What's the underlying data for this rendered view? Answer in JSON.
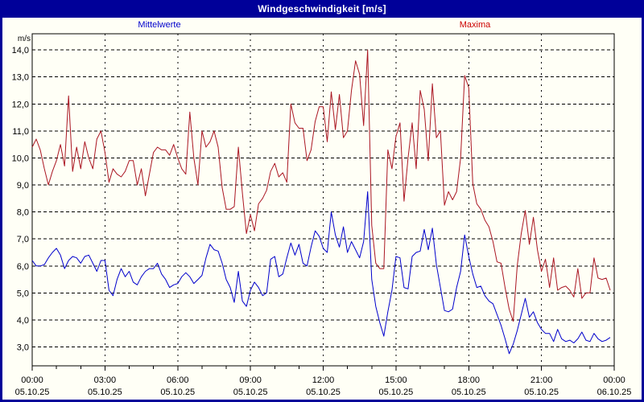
{
  "header": {
    "title": "Windgeschwindigkeit [m/s]"
  },
  "legend": {
    "mean_label": "Mittelwerte",
    "max_label": "Maxima",
    "mean_color": "#0000CC",
    "max_color": "#CC0000"
  },
  "colors": {
    "frame_navy": "#000099",
    "background": "#fffff6",
    "grid": "#000000",
    "mean_line": "#0000CC",
    "max_line": "#AA1622"
  },
  "chart_data": {
    "type": "line",
    "title": "Windgeschwindigkeit [m/s]",
    "ylabel": "m/s",
    "xlabel": "",
    "ylim": [
      2.3,
      14.6
    ],
    "xlim_hours": [
      0,
      24
    ],
    "grid": "dashed",
    "sample_interval_minutes": 10,
    "yticks": [
      {
        "value": 14,
        "label": "14,0"
      },
      {
        "value": 13,
        "label": "13,0"
      },
      {
        "value": 12,
        "label": "12,0"
      },
      {
        "value": 11,
        "label": "11,0"
      },
      {
        "value": 10,
        "label": "10,0"
      },
      {
        "value": 9,
        "label": "9,0"
      },
      {
        "value": 8,
        "label": "8,0"
      },
      {
        "value": 7,
        "label": "7,0"
      },
      {
        "value": 6,
        "label": "6,0"
      },
      {
        "value": 5,
        "label": "5,0"
      },
      {
        "value": 4,
        "label": "4,0"
      },
      {
        "value": 3,
        "label": "3,0"
      }
    ],
    "xticks": [
      {
        "hour": 0,
        "time": "00:00",
        "date": "05.10.25"
      },
      {
        "hour": 3,
        "time": "03:00",
        "date": "05.10.25"
      },
      {
        "hour": 6,
        "time": "06:00",
        "date": "05.10.25"
      },
      {
        "hour": 9,
        "time": "09:00",
        "date": "05.10.25"
      },
      {
        "hour": 12,
        "time": "12:00",
        "date": "05.10.25"
      },
      {
        "hour": 15,
        "time": "15:00",
        "date": "05.10.25"
      },
      {
        "hour": 18,
        "time": "18:00",
        "date": "05.10.25"
      },
      {
        "hour": 21,
        "time": "21:00",
        "date": "05.10.25"
      },
      {
        "hour": 24,
        "time": "00:00",
        "date": "06.10.25"
      }
    ],
    "minor_xtick_every_hours": 1,
    "series": [
      {
        "name": "Mittelwerte",
        "color": "#0000CC",
        "values": [
          6.2,
          6.0,
          6.0,
          6.05,
          6.3,
          6.5,
          6.65,
          6.4,
          5.9,
          6.2,
          6.35,
          6.3,
          6.1,
          6.35,
          6.4,
          6.1,
          5.8,
          6.2,
          6.2,
          5.1,
          4.9,
          5.5,
          5.9,
          5.6,
          5.8,
          5.4,
          5.3,
          5.6,
          5.8,
          5.9,
          5.9,
          6.1,
          5.7,
          5.5,
          5.2,
          5.3,
          5.35,
          5.6,
          5.75,
          5.6,
          5.35,
          5.5,
          5.65,
          6.3,
          6.8,
          6.6,
          6.55,
          6.1,
          5.5,
          5.2,
          4.65,
          5.8,
          4.7,
          4.5,
          5.1,
          5.4,
          5.2,
          4.9,
          5.0,
          6.25,
          6.35,
          5.6,
          5.7,
          6.3,
          6.85,
          6.4,
          6.8,
          6.1,
          6.0,
          6.7,
          7.3,
          7.1,
          6.65,
          6.5,
          8.0,
          7.15,
          6.7,
          7.45,
          6.5,
          6.9,
          6.6,
          6.3,
          6.9,
          8.75,
          5.5,
          4.5,
          3.9,
          3.4,
          4.3,
          5.1,
          6.35,
          6.3,
          5.2,
          5.15,
          6.35,
          6.5,
          6.55,
          7.35,
          6.6,
          7.4,
          6.05,
          5.2,
          4.35,
          4.3,
          4.4,
          5.2,
          5.8,
          7.15,
          6.35,
          5.7,
          5.2,
          5.25,
          4.9,
          4.7,
          4.6,
          4.2,
          3.8,
          3.3,
          2.75,
          3.1,
          3.6,
          4.2,
          4.8,
          4.1,
          4.3,
          3.9,
          3.65,
          3.5,
          3.5,
          3.2,
          3.65,
          3.3,
          3.2,
          3.25,
          3.15,
          3.3,
          3.55,
          3.25,
          3.2,
          3.5,
          3.3,
          3.2,
          3.25,
          3.35
        ]
      },
      {
        "name": "Maxima",
        "color": "#AA1622",
        "values": [
          10.4,
          10.7,
          10.3,
          9.6,
          9.0,
          9.5,
          9.9,
          10.5,
          9.7,
          12.3,
          9.5,
          10.4,
          9.6,
          10.6,
          10.0,
          9.6,
          10.7,
          11.0,
          10.2,
          9.1,
          9.6,
          9.4,
          9.3,
          9.5,
          9.9,
          9.9,
          9.0,
          9.6,
          8.6,
          9.4,
          10.2,
          10.4,
          10.3,
          10.3,
          10.1,
          10.5,
          10.0,
          9.6,
          9.4,
          11.7,
          10.0,
          9.0,
          11.0,
          10.4,
          10.6,
          11.0,
          10.4,
          8.9,
          8.1,
          8.1,
          8.2,
          10.4,
          8.7,
          7.2,
          7.9,
          7.3,
          8.3,
          8.5,
          8.8,
          9.5,
          9.8,
          9.3,
          9.45,
          9.1,
          12.0,
          11.3,
          11.1,
          11.1,
          9.9,
          10.3,
          11.35,
          11.9,
          11.9,
          10.6,
          12.45,
          11.05,
          12.35,
          10.75,
          11.0,
          12.5,
          13.6,
          13.1,
          11.2,
          14.0,
          7.5,
          6.1,
          5.9,
          5.9,
          10.3,
          9.6,
          10.8,
          11.3,
          8.4,
          10.0,
          11.3,
          9.6,
          12.5,
          11.8,
          9.9,
          12.75,
          10.75,
          11.0,
          8.25,
          8.75,
          8.45,
          8.75,
          10.0,
          13.05,
          12.6,
          9.05,
          8.3,
          8.1,
          7.7,
          7.45,
          6.9,
          6.15,
          6.1,
          5.2,
          4.4,
          3.95,
          6.0,
          7.2,
          8.05,
          6.8,
          7.8,
          6.6,
          5.8,
          6.25,
          5.2,
          6.3,
          5.1,
          5.2,
          5.25,
          5.1,
          4.85,
          5.9,
          4.8,
          5.0,
          5.0,
          6.3,
          5.55,
          5.5,
          5.55,
          5.1
        ]
      }
    ]
  }
}
